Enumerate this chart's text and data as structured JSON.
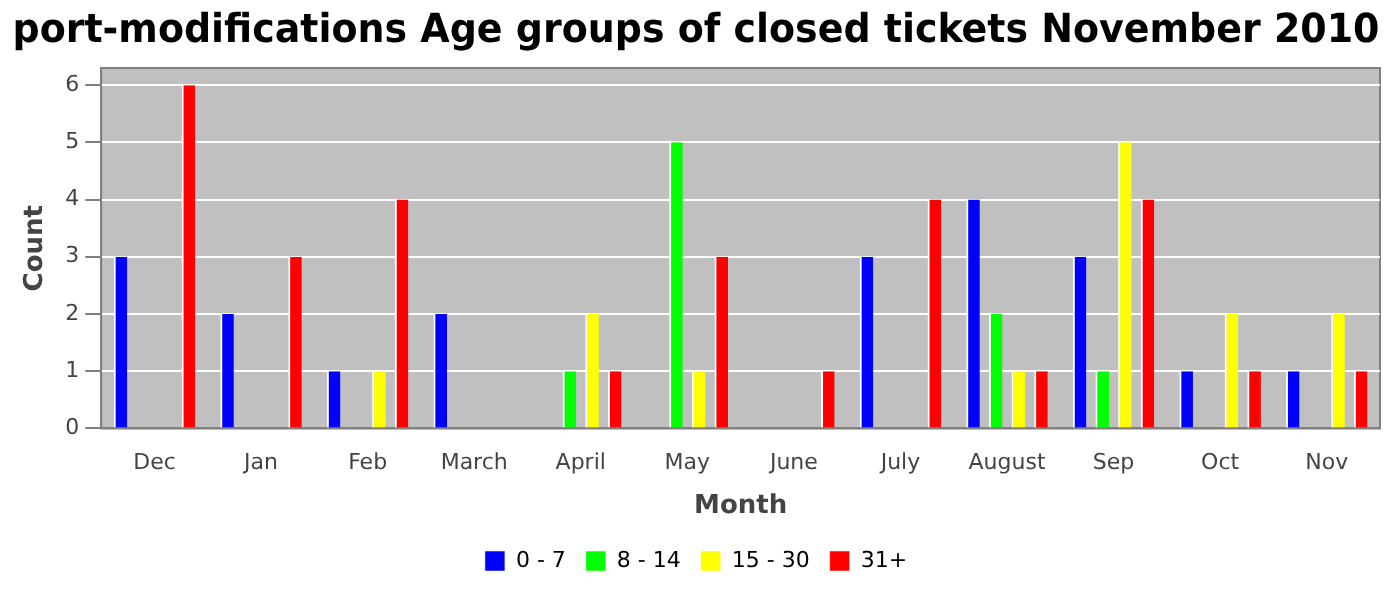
{
  "chart_data": {
    "type": "bar",
    "title": "port-modifications Age groups of closed tickets November 2010",
    "xlabel": "Month",
    "ylabel": "Count",
    "categories": [
      "Dec",
      "Jan",
      "Feb",
      "March",
      "April",
      "May",
      "June",
      "July",
      "August",
      "Sep",
      "Oct",
      "Nov"
    ],
    "series": [
      {
        "name": "0 - 7",
        "color": "#0000ff",
        "values": [
          3,
          2,
          1,
          2,
          0,
          0,
          0,
          3,
          4,
          3,
          1,
          1
        ]
      },
      {
        "name": "8 - 14",
        "color": "#00ff00",
        "values": [
          0,
          0,
          0,
          0,
          1,
          5,
          0,
          0,
          2,
          1,
          0,
          0
        ]
      },
      {
        "name": "15 - 30",
        "color": "#ffff00",
        "values": [
          0,
          0,
          1,
          0,
          2,
          1,
          0,
          0,
          1,
          5,
          2,
          2
        ]
      },
      {
        "name": "31+",
        "color": "#ff0000",
        "values": [
          6,
          3,
          4,
          0,
          1,
          3,
          1,
          4,
          1,
          4,
          1,
          1
        ]
      }
    ],
    "ylim": [
      0,
      6.3
    ],
    "yticks": [
      0,
      1,
      2,
      3,
      4,
      5,
      6
    ],
    "grid": "y",
    "legend": "bottom"
  }
}
